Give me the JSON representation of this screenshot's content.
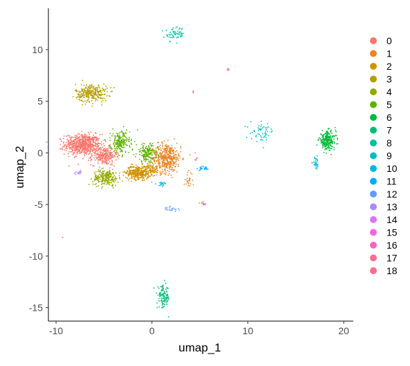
{
  "chart_data": {
    "type": "scatter",
    "title": "",
    "xlabel": "umap_1",
    "ylabel": "umap_2",
    "xlim": [
      -10.8,
      21.0
    ],
    "ylim": [
      -16.3,
      14.0
    ],
    "x_ticks": [
      -10,
      0,
      10,
      20
    ],
    "y_ticks": [
      -15,
      -10,
      -5,
      0,
      5,
      10
    ],
    "x_tick_labels": [
      "-10",
      "0",
      "10",
      "20"
    ],
    "y_tick_labels": [
      "-15",
      "-10",
      "-5",
      "0",
      "5",
      "10"
    ],
    "grid": false,
    "legend_position": "right",
    "legend": [
      {
        "label": "0",
        "color": "#F8766D"
      },
      {
        "label": "1",
        "color": "#E88526"
      },
      {
        "label": "2",
        "color": "#D39200"
      },
      {
        "label": "3",
        "color": "#B79F00"
      },
      {
        "label": "4",
        "color": "#93AA00"
      },
      {
        "label": "5",
        "color": "#5EB300"
      },
      {
        "label": "6",
        "color": "#00BA38"
      },
      {
        "label": "7",
        "color": "#00BF74"
      },
      {
        "label": "8",
        "color": "#00C19F"
      },
      {
        "label": "9",
        "color": "#00BFC4"
      },
      {
        "label": "10",
        "color": "#00B9E3"
      },
      {
        "label": "11",
        "color": "#00ADFA"
      },
      {
        "label": "12",
        "color": "#619CFF"
      },
      {
        "label": "13",
        "color": "#AE87FF"
      },
      {
        "label": "14",
        "color": "#DB72FB"
      },
      {
        "label": "15",
        "color": "#F564E3"
      },
      {
        "label": "16",
        "color": "#FF61C3"
      },
      {
        "label": "17",
        "color": "#FF6C91"
      },
      {
        "label": "18",
        "color": "#FF6C91"
      }
    ],
    "clusters": [
      {
        "label": "0",
        "color": "#F8766D",
        "blobs": [
          [
            -7.2,
            0.8,
            1.7,
            0.9,
            650
          ],
          [
            -5.0,
            -0.3,
            1.2,
            0.8,
            250
          ]
        ]
      },
      {
        "label": "1",
        "color": "#E88526",
        "blobs": [
          [
            1.5,
            -0.5,
            1.4,
            1.3,
            450
          ],
          [
            3.8,
            -2.6,
            0.4,
            0.7,
            25
          ],
          [
            5.3,
            -4.9,
            0.3,
            0.15,
            6
          ]
        ]
      },
      {
        "label": "2",
        "color": "#D39200",
        "blobs": [
          [
            -1.4,
            -1.9,
            1.2,
            0.6,
            350
          ],
          [
            0.0,
            -1.6,
            0.6,
            0.4,
            60
          ]
        ]
      },
      {
        "label": "3",
        "color": "#B79F00",
        "blobs": [
          [
            -6.3,
            5.8,
            1.5,
            0.8,
            280
          ]
        ]
      },
      {
        "label": "4",
        "color": "#93AA00",
        "blobs": [
          [
            -4.8,
            -2.4,
            1.2,
            0.7,
            230
          ]
        ]
      },
      {
        "label": "5",
        "color": "#5EB300",
        "blobs": [
          [
            -3.3,
            1.0,
            0.9,
            1.0,
            200
          ],
          [
            -0.5,
            0.0,
            1.0,
            0.8,
            160
          ]
        ]
      },
      {
        "label": "6",
        "color": "#00BA38",
        "blobs": [
          [
            18.3,
            1.2,
            0.8,
            0.8,
            230
          ]
        ]
      },
      {
        "label": "7",
        "color": "#00BF74",
        "blobs": [
          [
            1.2,
            -14.0,
            0.6,
            1.0,
            110
          ]
        ]
      },
      {
        "label": "8",
        "color": "#00C19F",
        "blobs": [
          [
            2.4,
            11.5,
            0.9,
            0.6,
            60
          ]
        ]
      },
      {
        "label": "9",
        "color": "#00BFC4",
        "blobs": [
          [
            11.5,
            2.0,
            1.1,
            0.8,
            55
          ]
        ]
      },
      {
        "label": "10",
        "color": "#00B9E3",
        "blobs": [
          [
            17.1,
            -1.0,
            0.3,
            0.5,
            30
          ],
          [
            1.0,
            -3.0,
            0.5,
            0.2,
            20
          ]
        ]
      },
      {
        "label": "11",
        "color": "#00ADFA",
        "blobs": [
          [
            5.3,
            -1.5,
            0.7,
            0.2,
            25
          ]
        ]
      },
      {
        "label": "12",
        "color": "#619CFF",
        "blobs": [
          [
            2.0,
            -5.5,
            0.6,
            0.2,
            20
          ]
        ]
      },
      {
        "label": "13",
        "color": "#AE87FF",
        "blobs": [
          [
            -7.6,
            -1.9,
            0.25,
            0.15,
            14
          ]
        ]
      },
      {
        "label": "14",
        "color": "#DB72FB",
        "blobs": [
          [
            5.5,
            -5.0,
            0.15,
            0.1,
            8
          ]
        ]
      },
      {
        "label": "15",
        "color": "#F564E3",
        "blobs": [
          [
            4.3,
            5.9,
            0.05,
            0.1,
            4
          ]
        ]
      },
      {
        "label": "16",
        "color": "#FF61C3",
        "blobs": [
          [
            4.6,
            -0.5,
            0.15,
            0.3,
            6
          ]
        ]
      },
      {
        "label": "17",
        "color": "#FF6C91",
        "blobs": [
          [
            7.9,
            8.1,
            0.1,
            0.1,
            5
          ]
        ]
      },
      {
        "label": "18",
        "color": "#FF6C91",
        "blobs": [
          [
            -9.3,
            -8.2,
            0.05,
            0.05,
            2
          ]
        ]
      }
    ]
  }
}
